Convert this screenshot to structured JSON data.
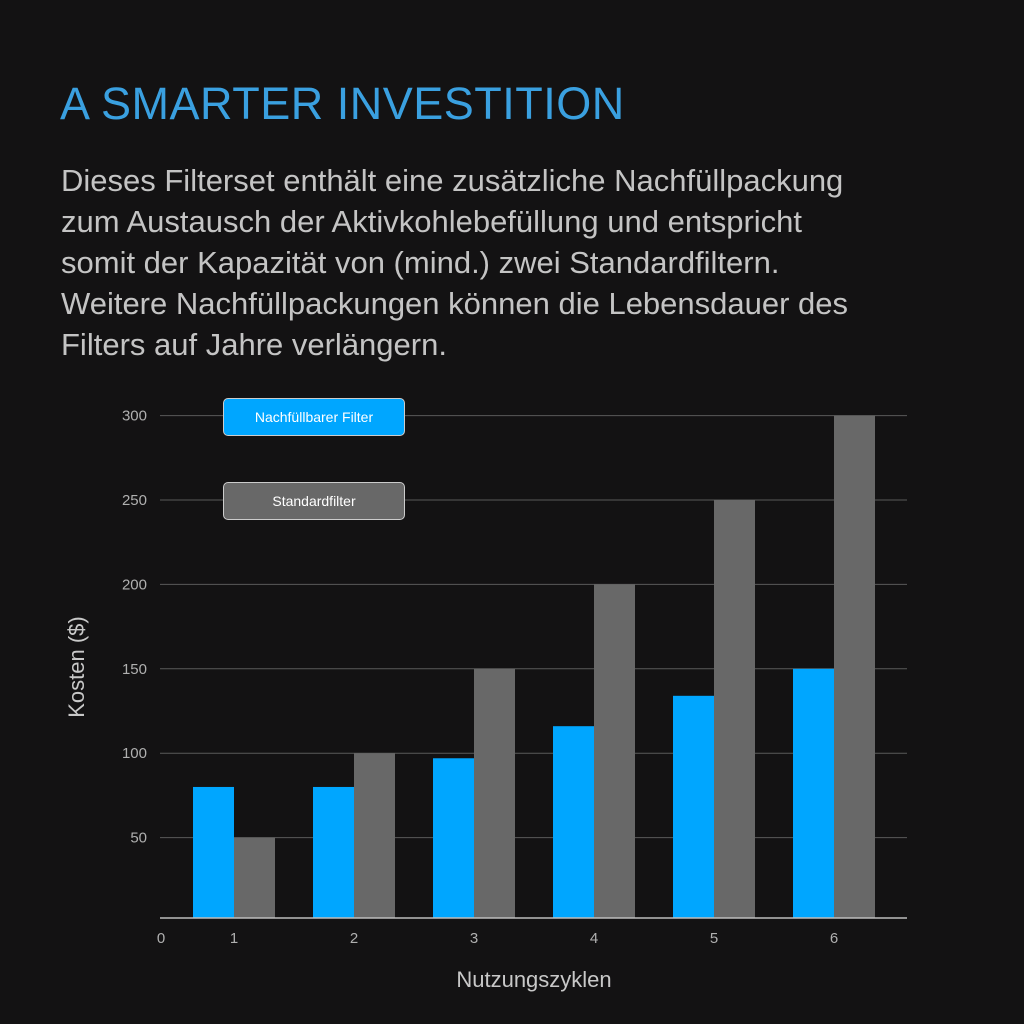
{
  "title": "A SMARTER INVESTITION",
  "description": [
    "Dieses Filterset enthält eine zusätzliche Nachfüllpackung",
    "zum Austausch der Aktivkohlebefüllung und entspricht",
    "somit der Kapazität von (mind.) zwei Standardfiltern.",
    "Weitere Nachfüllpackungen können die Lebensdauer des",
    "Filters auf Jahre verlängern."
  ],
  "chart_data": {
    "type": "bar",
    "title": "",
    "xlabel": "Nutzungszyklen",
    "ylabel": "Kosten ($)",
    "x_origin_label": "0",
    "categories": [
      "1",
      "2",
      "3",
      "4",
      "5",
      "6"
    ],
    "series": [
      {
        "name": "Nachfüllbarer Filter",
        "color": "#00a6ff",
        "values": [
          80,
          80,
          97,
          116,
          134,
          150
        ]
      },
      {
        "name": "Standardfilter",
        "color": "#686868",
        "values": [
          50,
          100,
          150,
          200,
          250,
          300
        ]
      }
    ],
    "yticks": [
      "50",
      "100",
      "150",
      "200",
      "250",
      "300"
    ],
    "ylim": [
      0,
      300
    ],
    "grid": true,
    "legend_placement": "top-left"
  }
}
